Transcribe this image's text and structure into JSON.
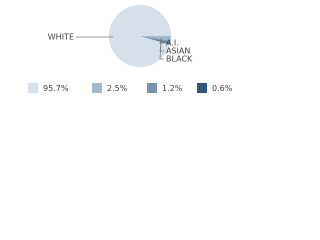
{
  "chart_data": {
    "type": "pie",
    "categories": [
      "WHITE",
      "A.I.",
      "ASIAN",
      "BLACK"
    ],
    "values": [
      95.7,
      2.5,
      1.2,
      0.6
    ],
    "value_labels": [
      "95.7%",
      "2.5%",
      "1.2%",
      "0.6%"
    ],
    "colors": [
      "#d6e0ea",
      "#a4b8cb",
      "#7594b2",
      "#2c5a80"
    ]
  }
}
